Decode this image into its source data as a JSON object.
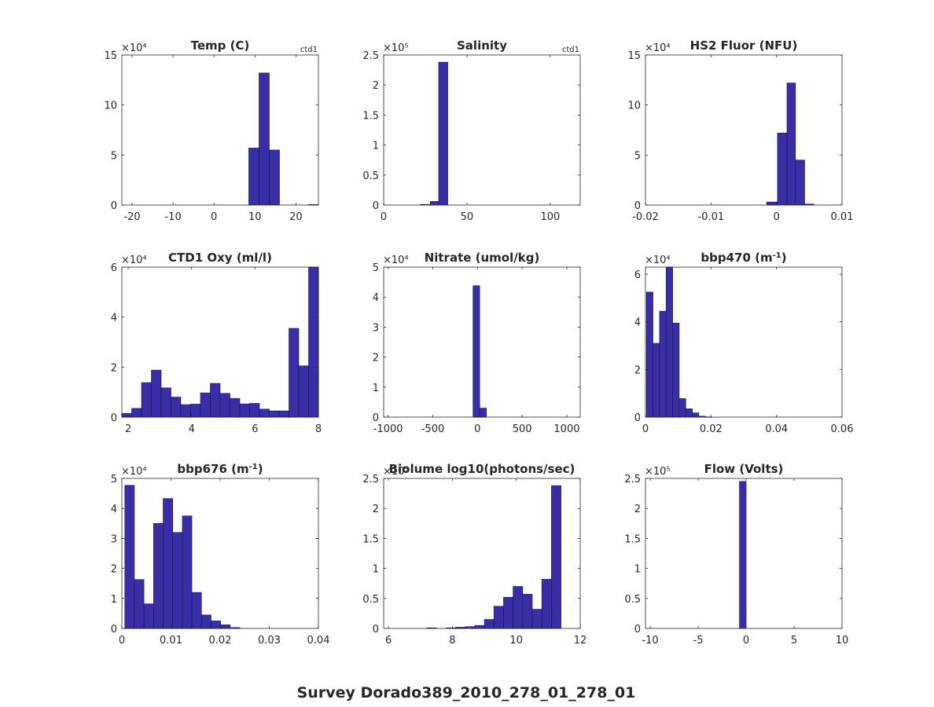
{
  "figure_title": "Survey Dorado389_2010_278_01_278_01",
  "colors": {
    "bar": "#3a2ea6",
    "edge": "#1a1440",
    "axis": "#262626"
  },
  "chart_data": [
    {
      "type": "bar",
      "title": "Temp (C)",
      "annotation": "ctd1",
      "exponent_label": "×10⁴",
      "xlim": [
        -22.5,
        25.5
      ],
      "ylim": [
        0,
        15
      ],
      "xticks": [
        -20,
        -10,
        0,
        10,
        20
      ],
      "xtick_labels": [
        "-20",
        "-10",
        "0",
        "10",
        "20"
      ],
      "yticks": [
        0,
        5,
        10,
        15
      ],
      "ytick_labels": [
        "0",
        "5",
        "10",
        "15"
      ],
      "bin_edges": [
        8.5,
        11,
        13.5,
        16,
        23,
        25.5
      ],
      "values": [
        5.7,
        13.2,
        5.5,
        0,
        0.05
      ]
    },
    {
      "type": "bar",
      "title": "Salinity",
      "annotation": "ctd1",
      "exponent_label": "×10⁵",
      "xlim": [
        0,
        118
      ],
      "ylim": [
        0,
        2.5
      ],
      "xticks": [
        0,
        50,
        100
      ],
      "xtick_labels": [
        "0",
        "50",
        "100"
      ],
      "yticks": [
        0,
        0.5,
        1,
        1.5,
        2,
        2.5
      ],
      "ytick_labels": [
        "0",
        "0.5",
        "1",
        "1.5",
        "2",
        "2.5"
      ],
      "bin_edges": [
        22,
        28,
        33,
        38.5
      ],
      "values": [
        0.01,
        0.06,
        2.38
      ]
    },
    {
      "type": "bar",
      "title": "HS2 Fluor (NFU)",
      "annotation": "",
      "exponent_label": "×10⁴",
      "xlim": [
        -0.02,
        0.01
      ],
      "ylim": [
        0,
        15
      ],
      "xticks": [
        -0.02,
        -0.01,
        0,
        0.01
      ],
      "xtick_labels": [
        "-0.02",
        "-0.01",
        "0",
        "0.01"
      ],
      "yticks": [
        0,
        5,
        10,
        15
      ],
      "ytick_labels": [
        "0",
        "5",
        "10",
        "15"
      ],
      "bin_edges": [
        -0.0015,
        0.00015,
        0.0016,
        0.0029,
        0.0043,
        0.0057
      ],
      "values": [
        0.3,
        7.2,
        12.2,
        4.5,
        0.1
      ]
    },
    {
      "type": "bar",
      "title": "CTD1 Oxy (ml/l)",
      "annotation": "",
      "exponent_label": "×10⁴",
      "xlim": [
        1.8,
        8
      ],
      "ylim": [
        0,
        6
      ],
      "xticks": [
        2,
        4,
        6,
        8
      ],
      "xtick_labels": [
        "2",
        "4",
        "6",
        "8"
      ],
      "yticks": [
        0,
        2,
        4,
        6
      ],
      "ytick_labels": [
        "0",
        "2",
        "4",
        "6"
      ],
      "bin_edges": [
        1.8,
        2.11,
        2.42,
        2.73,
        3.04,
        3.35,
        3.66,
        3.97,
        4.28,
        4.59,
        4.9,
        5.21,
        5.52,
        5.83,
        6.14,
        6.45,
        6.76,
        7.07,
        7.38,
        7.69,
        8.0
      ],
      "values": [
        0.15,
        0.35,
        1.38,
        1.88,
        1.17,
        0.8,
        0.5,
        0.52,
        0.97,
        1.35,
        0.95,
        0.75,
        0.53,
        0.55,
        0.32,
        0.25,
        0.25,
        3.55,
        2.05,
        6.0
      ]
    },
    {
      "type": "bar",
      "title": "Nitrate (umol/kg)",
      "annotation": "",
      "exponent_label": "×10⁴",
      "xlim": [
        -1050,
        1150
      ],
      "ylim": [
        0,
        5
      ],
      "xticks": [
        -1000,
        -500,
        0,
        500,
        1000
      ],
      "xtick_labels": [
        "-1000",
        "-500",
        "0",
        "500",
        "1000"
      ],
      "yticks": [
        0,
        1,
        2,
        3,
        4,
        5
      ],
      "ytick_labels": [
        "0",
        "1",
        "2",
        "3",
        "4",
        "5"
      ],
      "bin_edges": [
        -50,
        25,
        100
      ],
      "values": [
        4.38,
        0.3
      ]
    },
    {
      "type": "bar",
      "title": "bbp470 (m",
      "title_superscript": "-1",
      "title_suffix": ")",
      "annotation": "",
      "exponent_label": "×10⁴",
      "xlim": [
        0,
        0.06
      ],
      "ylim": [
        0,
        6.3
      ],
      "xticks": [
        0,
        0.02,
        0.04,
        0.06
      ],
      "xtick_labels": [
        "0",
        "0.02",
        "0.04",
        "0.06"
      ],
      "yticks": [
        0,
        2,
        4,
        6
      ],
      "ytick_labels": [
        "0",
        "2",
        "4",
        "6"
      ],
      "bin_edges": [
        0.0003,
        0.0023,
        0.0043,
        0.0063,
        0.0083,
        0.0103,
        0.0123,
        0.0143,
        0.0163,
        0.0183,
        0.0203
      ],
      "values": [
        5.25,
        3.1,
        4.45,
        6.3,
        3.95,
        0.78,
        0.35,
        0.18,
        0.04,
        0.01
      ]
    },
    {
      "type": "bar",
      "title": "bbp676 (m",
      "title_superscript": "-1",
      "title_suffix": ")",
      "annotation": "",
      "exponent_label": "×10⁴",
      "xlim": [
        0,
        0.04
      ],
      "ylim": [
        0,
        5
      ],
      "xticks": [
        0,
        0.01,
        0.02,
        0.03,
        0.04
      ],
      "xtick_labels": [
        "0",
        "0.01",
        "0.02",
        "0.03",
        "0.04"
      ],
      "yticks": [
        0,
        1,
        2,
        3,
        4,
        5
      ],
      "ytick_labels": [
        "0",
        "1",
        "2",
        "3",
        "4",
        "5"
      ],
      "bin_edges": [
        0.0006,
        0.00255,
        0.0045,
        0.00645,
        0.0084,
        0.01035,
        0.0123,
        0.01425,
        0.0162,
        0.01815,
        0.0201,
        0.02205,
        0.024
      ],
      "values": [
        4.77,
        1.63,
        0.82,
        3.5,
        4.33,
        3.2,
        3.75,
        1.2,
        0.45,
        0.25,
        0.12,
        0.03
      ]
    },
    {
      "type": "bar",
      "title": "Biolume log10(photons/sec)",
      "annotation": "",
      "exponent_label": "×10⁵",
      "xlim": [
        5.85,
        12
      ],
      "ylim": [
        0,
        2.5
      ],
      "xticks": [
        6,
        8,
        10,
        12
      ],
      "xtick_labels": [
        "6",
        "8",
        "10",
        "12"
      ],
      "yticks": [
        0,
        0.5,
        1,
        1.5,
        2,
        2.5
      ],
      "ytick_labels": [
        "0",
        "0.5",
        "1",
        "1.5",
        "2",
        "2.5"
      ],
      "bin_edges": [
        7.2,
        7.5,
        7.8,
        8.1,
        8.4,
        8.7,
        9.0,
        9.3,
        9.6,
        9.9,
        10.2,
        10.5,
        10.8,
        11.1,
        11.4
      ],
      "values": [
        0.01,
        0,
        0.01,
        0.02,
        0.03,
        0.05,
        0.15,
        0.37,
        0.52,
        0.7,
        0.57,
        0.32,
        0.82,
        2.38,
        0.08
      ]
    },
    {
      "type": "bar",
      "title": "Flow (Volts)",
      "annotation": "",
      "exponent_label": "×10⁵",
      "xlim": [
        -10.5,
        10
      ],
      "ylim": [
        0,
        2.5
      ],
      "xticks": [
        -10,
        -5,
        0,
        5,
        10
      ],
      "xtick_labels": [
        "-10",
        "-5",
        "0",
        "5",
        "10"
      ],
      "yticks": [
        0,
        0.5,
        1,
        1.5,
        2,
        2.5
      ],
      "ytick_labels": [
        "0",
        "0.5",
        "1",
        "1.5",
        "2",
        "2.5"
      ],
      "bin_edges": [
        -0.7,
        0.0
      ],
      "values": [
        2.45
      ]
    }
  ]
}
